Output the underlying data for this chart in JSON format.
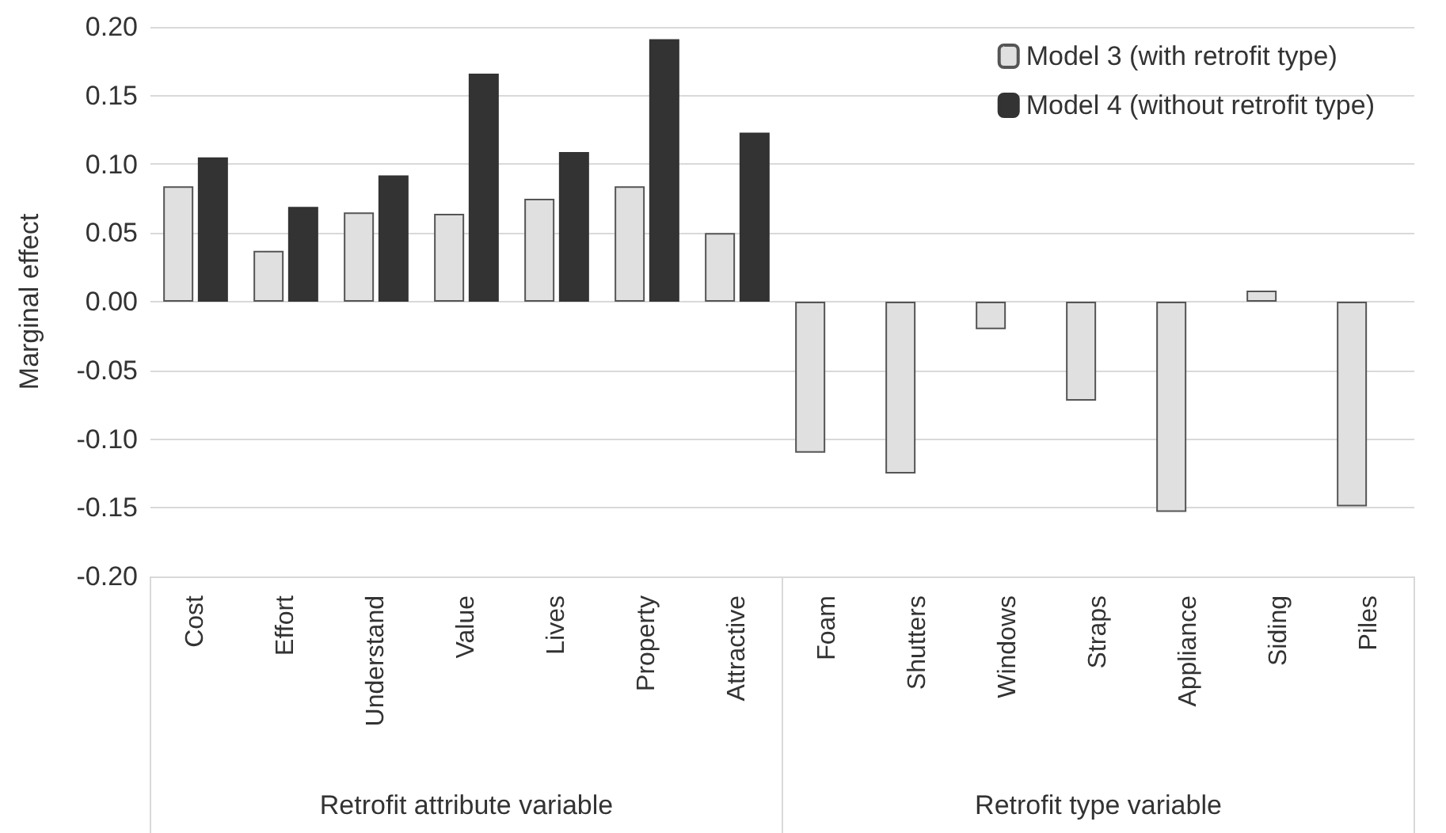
{
  "chart_data": {
    "type": "bar",
    "ylabel": "Marginal effect",
    "categories": [
      "Cost",
      "Effort",
      "Understand",
      "Value",
      "Lives",
      "Property",
      "Attractive",
      "Foam",
      "Shutters",
      "Windows",
      "Straps",
      "Appliance",
      "Siding",
      "Piles"
    ],
    "series": [
      {
        "name": "Model 3 (with retrofit type)",
        "color": "#e0e0e0",
        "values": [
          0.084,
          0.037,
          0.065,
          0.064,
          0.075,
          0.084,
          0.05,
          -0.11,
          -0.125,
          -0.02,
          -0.072,
          -0.153,
          0.008,
          -0.149
        ]
      },
      {
        "name": "Model 4 (without retrofit type)",
        "color": "#333333",
        "values": [
          0.105,
          0.069,
          0.092,
          0.166,
          0.109,
          0.191,
          0.123,
          null,
          null,
          null,
          null,
          null,
          null,
          null
        ]
      }
    ],
    "ylim": [
      -0.2,
      0.2
    ],
    "yticks": [
      {
        "value": -0.2,
        "label": "-0.20"
      },
      {
        "value": -0.15,
        "label": "-0.15"
      },
      {
        "value": -0.1,
        "label": "-0.10"
      },
      {
        "value": -0.05,
        "label": "-0.05"
      },
      {
        "value": 0,
        "label": "0.00"
      },
      {
        "value": 0.05,
        "label": "0.05"
      },
      {
        "value": 0.1,
        "label": "0.10"
      },
      {
        "value": 0.15,
        "label": "0.15"
      },
      {
        "value": 0.2,
        "label": "0.20"
      }
    ],
    "grid": "y",
    "legend": "top right",
    "annotations": [
      "Retrofit attribute variable",
      "Retrofit type variable"
    ]
  }
}
